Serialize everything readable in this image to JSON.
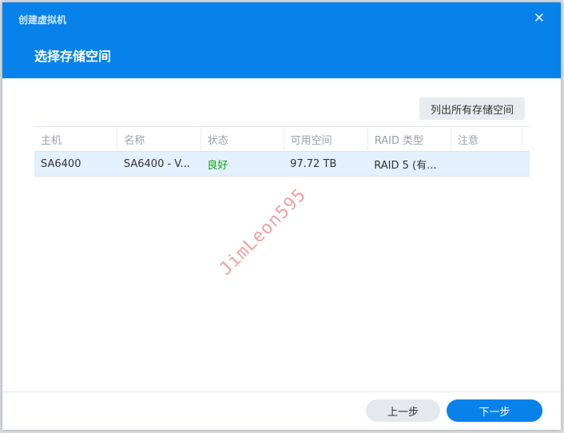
{
  "window": {
    "app_title": "创建虚拟机",
    "step_title": "选择存储空间"
  },
  "toolbar": {
    "list_all_label": "列出所有存储空间"
  },
  "table": {
    "columns": [
      "主机",
      "名称",
      "状态",
      "可用空间",
      "RAID 类型",
      "注意"
    ],
    "rows": [
      {
        "host": "SA6400",
        "name": "SA6400 - V...",
        "status": "良好",
        "free": "97.72 TB",
        "raid": "RAID 5 (有...",
        "note": ""
      }
    ]
  },
  "watermark": "JimLeon595",
  "footer": {
    "prev_label": "上一步",
    "next_label": "下一步"
  },
  "colors": {
    "accent": "#0782ea",
    "status_ok": "#14a314"
  }
}
